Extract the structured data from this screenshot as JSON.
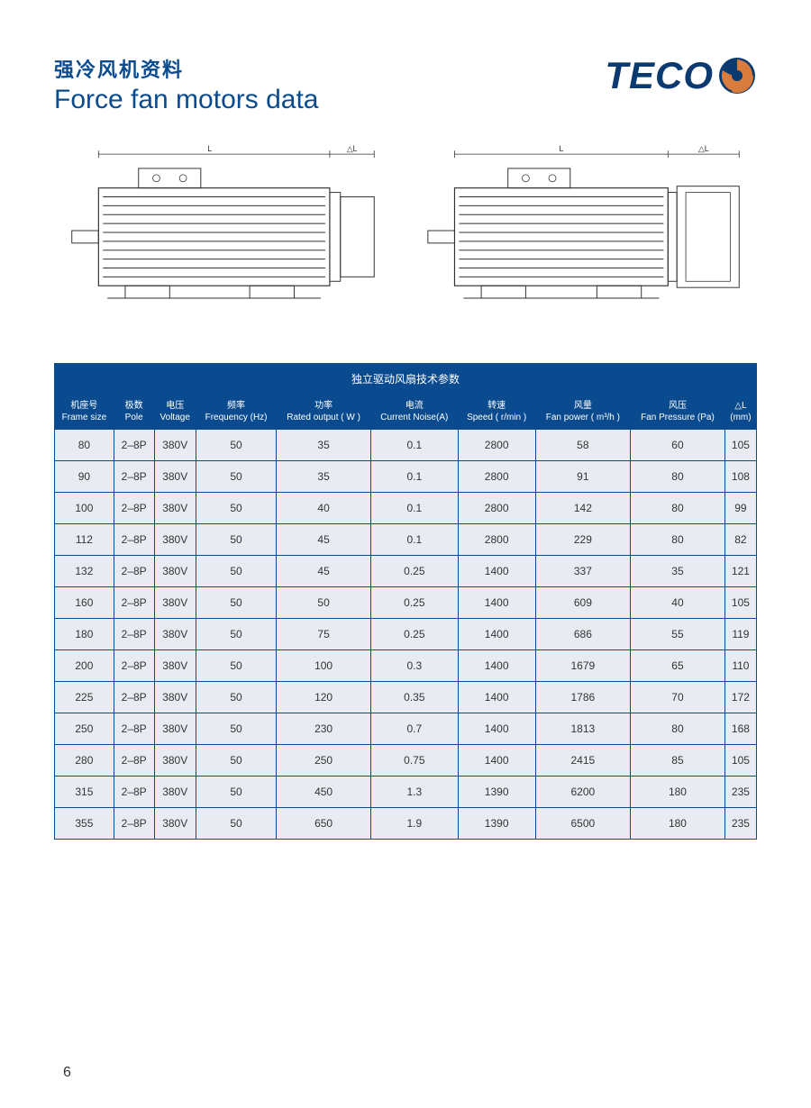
{
  "header": {
    "title_cn": "强冷风机资料",
    "title_en": "Force fan motors data",
    "logo_text": "TECO"
  },
  "drawings": {
    "left_dim_L": "L",
    "left_dim_dL": "△L",
    "right_dim_L": "L",
    "right_dim_dL": "△L"
  },
  "table": {
    "caption": "独立驱动风扇技术参数",
    "columns": [
      {
        "cn": "机座号",
        "en": "Frame size"
      },
      {
        "cn": "极数",
        "en": "Pole"
      },
      {
        "cn": "电压",
        "en": "Voltage"
      },
      {
        "cn": "频率",
        "en": "Frequency (Hz)"
      },
      {
        "cn": "功率",
        "en": "Rated output ( W )"
      },
      {
        "cn": "电流",
        "en": "Current Noise(A)"
      },
      {
        "cn": "转速",
        "en": "Speed ( r/min )"
      },
      {
        "cn": "风量",
        "en": "Fan power ( m³/h )"
      },
      {
        "cn": "风压",
        "en": "Fan Pressure (Pa)"
      },
      {
        "cn": "△L",
        "en": "(mm)"
      }
    ],
    "rows": [
      [
        "80",
        "2–8P",
        "380V",
        "50",
        "35",
        "0.1",
        "2800",
        "58",
        "60",
        "105"
      ],
      [
        "90",
        "2–8P",
        "380V",
        "50",
        "35",
        "0.1",
        "2800",
        "91",
        "80",
        "108"
      ],
      [
        "100",
        "2–8P",
        "380V",
        "50",
        "40",
        "0.1",
        "2800",
        "142",
        "80",
        "99"
      ],
      [
        "112",
        "2–8P",
        "380V",
        "50",
        "45",
        "0.1",
        "2800",
        "229",
        "80",
        "82"
      ],
      [
        "132",
        "2–8P",
        "380V",
        "50",
        "45",
        "0.25",
        "1400",
        "337",
        "35",
        "121"
      ],
      [
        "160",
        "2–8P",
        "380V",
        "50",
        "50",
        "0.25",
        "1400",
        "609",
        "40",
        "105"
      ],
      [
        "180",
        "2–8P",
        "380V",
        "50",
        "75",
        "0.25",
        "1400",
        "686",
        "55",
        "119"
      ],
      [
        "200",
        "2–8P",
        "380V",
        "50",
        "100",
        "0.3",
        "1400",
        "1679",
        "65",
        "110"
      ],
      [
        "225",
        "2–8P",
        "380V",
        "50",
        "120",
        "0.35",
        "1400",
        "1786",
        "70",
        "172"
      ],
      [
        "250",
        "2–8P",
        "380V",
        "50",
        "230",
        "0.7",
        "1400",
        "1813",
        "80",
        "168"
      ],
      [
        "280",
        "2–8P",
        "380V",
        "50",
        "250",
        "0.75",
        "1400",
        "2415",
        "85",
        "105"
      ],
      [
        "315",
        "2–8P",
        "380V",
        "50",
        "450",
        "1.3",
        "1390",
        "6200",
        "180",
        "235"
      ],
      [
        "355",
        "2–8P",
        "380V",
        "50",
        "650",
        "1.9",
        "1390",
        "6500",
        "180",
        "235"
      ]
    ],
    "header_bg": "#0a4b8f",
    "cell_bg": "#e8ecf2",
    "border_color": "#0a4b8f"
  },
  "page_number": "6"
}
